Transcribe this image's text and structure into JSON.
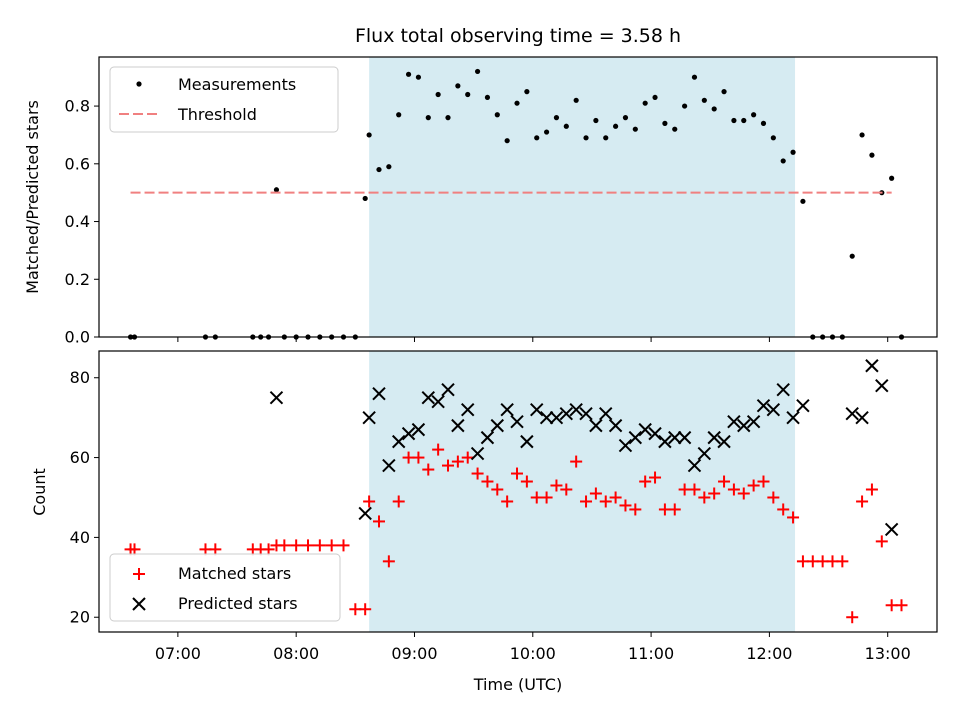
{
  "chart_data": [
    {
      "type": "scatter",
      "title": "Flux total observing time = 3.58 h",
      "ylabel": "Matched/Predicted stars",
      "xlabel": "",
      "xlim": [
        "06:20",
        "13:25"
      ],
      "ylim": [
        0,
        0.97
      ],
      "yticks": [
        0.0,
        0.2,
        0.4,
        0.6,
        0.8
      ],
      "ytick_labels": [
        "0.0",
        "0.2",
        "0.4",
        "0.6",
        "0.8"
      ],
      "shaded_interval": [
        "08:37",
        "12:13"
      ],
      "shaded_color": "#add8e6",
      "legend_position": "upper-left",
      "series": [
        {
          "name": "Measurements",
          "kind": "dots",
          "color": "#000000",
          "points": [
            [
              "06:36",
              0
            ],
            [
              "06:38",
              0
            ],
            [
              "07:14",
              0
            ],
            [
              "07:19",
              0
            ],
            [
              "07:38",
              0
            ],
            [
              "07:42",
              0
            ],
            [
              "07:46",
              0
            ],
            [
              "07:50",
              0.51
            ],
            [
              "07:54",
              0
            ],
            [
              "08:00",
              0
            ],
            [
              "08:06",
              0
            ],
            [
              "08:12",
              0
            ],
            [
              "08:18",
              0
            ],
            [
              "08:24",
              0
            ],
            [
              "08:30",
              0
            ],
            [
              "08:35",
              0.48
            ],
            [
              "08:37",
              0.7
            ],
            [
              "08:42",
              0.58
            ],
            [
              "08:47",
              0.59
            ],
            [
              "08:52",
              0.77
            ],
            [
              "08:57",
              0.91
            ],
            [
              "09:02",
              0.9
            ],
            [
              "09:07",
              0.76
            ],
            [
              "09:12",
              0.84
            ],
            [
              "09:17",
              0.76
            ],
            [
              "09:22",
              0.87
            ],
            [
              "09:27",
              0.84
            ],
            [
              "09:32",
              0.92
            ],
            [
              "09:37",
              0.83
            ],
            [
              "09:42",
              0.77
            ],
            [
              "09:47",
              0.68
            ],
            [
              "09:52",
              0.81
            ],
            [
              "09:57",
              0.85
            ],
            [
              "10:02",
              0.69
            ],
            [
              "10:07",
              0.71
            ],
            [
              "10:12",
              0.76
            ],
            [
              "10:17",
              0.73
            ],
            [
              "10:22",
              0.82
            ],
            [
              "10:27",
              0.69
            ],
            [
              "10:32",
              0.75
            ],
            [
              "10:37",
              0.69
            ],
            [
              "10:42",
              0.73
            ],
            [
              "10:47",
              0.76
            ],
            [
              "10:52",
              0.72
            ],
            [
              "10:57",
              0.81
            ],
            [
              "11:02",
              0.83
            ],
            [
              "11:07",
              0.74
            ],
            [
              "11:12",
              0.72
            ],
            [
              "11:17",
              0.8
            ],
            [
              "11:22",
              0.9
            ],
            [
              "11:27",
              0.82
            ],
            [
              "11:32",
              0.79
            ],
            [
              "11:37",
              0.85
            ],
            [
              "11:42",
              0.75
            ],
            [
              "11:47",
              0.75
            ],
            [
              "11:52",
              0.77
            ],
            [
              "11:57",
              0.74
            ],
            [
              "12:02",
              0.69
            ],
            [
              "12:07",
              0.61
            ],
            [
              "12:12",
              0.64
            ],
            [
              "12:17",
              0.47
            ],
            [
              "12:22",
              0
            ],
            [
              "12:27",
              0
            ],
            [
              "12:32",
              0
            ],
            [
              "12:37",
              0
            ],
            [
              "12:42",
              0.28
            ],
            [
              "12:47",
              0.7
            ],
            [
              "12:52",
              0.63
            ],
            [
              "12:57",
              0.5
            ],
            [
              "13:02",
              0.55
            ],
            [
              "13:07",
              0
            ]
          ]
        },
        {
          "name": "Threshold",
          "kind": "dashed-line",
          "color": "#f08080",
          "points": [
            [
              "06:36",
              0.5
            ],
            [
              "13:02",
              0.5
            ]
          ]
        }
      ]
    },
    {
      "type": "scatter",
      "title": "",
      "ylabel": "Count",
      "xlabel": "Time (UTC)",
      "xlim": [
        "06:20",
        "13:25"
      ],
      "ylim": [
        16.3,
        86.7
      ],
      "yticks": [
        20,
        40,
        60,
        80
      ],
      "ytick_labels": [
        "20",
        "40",
        "60",
        "80"
      ],
      "xticks": [
        "07:00",
        "08:00",
        "09:00",
        "10:00",
        "11:00",
        "12:00",
        "13:00"
      ],
      "xtick_labels": [
        "07:00",
        "08:00",
        "09:00",
        "10:00",
        "11:00",
        "12:00",
        "13:00"
      ],
      "shaded_interval": [
        "08:37",
        "12:13"
      ],
      "shaded_color": "#add8e6",
      "legend_position": "lower-left",
      "series": [
        {
          "name": "Matched stars",
          "kind": "plus",
          "color": "#ff0000",
          "points": [
            [
              "06:36",
              37
            ],
            [
              "06:38",
              37
            ],
            [
              "07:14",
              37
            ],
            [
              "07:19",
              37
            ],
            [
              "07:38",
              37
            ],
            [
              "07:42",
              37
            ],
            [
              "07:46",
              37
            ],
            [
              "07:50",
              38
            ],
            [
              "07:54",
              38
            ],
            [
              "08:00",
              38
            ],
            [
              "08:06",
              38
            ],
            [
              "08:12",
              38
            ],
            [
              "08:18",
              38
            ],
            [
              "08:24",
              38
            ],
            [
              "08:30",
              22
            ],
            [
              "08:35",
              22
            ],
            [
              "08:37",
              49
            ],
            [
              "08:42",
              44
            ],
            [
              "08:47",
              34
            ],
            [
              "08:52",
              49
            ],
            [
              "08:57",
              60
            ],
            [
              "09:02",
              60
            ],
            [
              "09:07",
              57
            ],
            [
              "09:12",
              62
            ],
            [
              "09:17",
              58
            ],
            [
              "09:22",
              59
            ],
            [
              "09:27",
              60
            ],
            [
              "09:32",
              56
            ],
            [
              "09:37",
              54
            ],
            [
              "09:42",
              52
            ],
            [
              "09:47",
              49
            ],
            [
              "09:52",
              56
            ],
            [
              "09:57",
              54
            ],
            [
              "10:02",
              50
            ],
            [
              "10:07",
              50
            ],
            [
              "10:12",
              53
            ],
            [
              "10:17",
              52
            ],
            [
              "10:22",
              59
            ],
            [
              "10:27",
              49
            ],
            [
              "10:32",
              51
            ],
            [
              "10:37",
              49
            ],
            [
              "10:42",
              50
            ],
            [
              "10:47",
              48
            ],
            [
              "10:52",
              47
            ],
            [
              "10:57",
              54
            ],
            [
              "11:02",
              55
            ],
            [
              "11:07",
              47
            ],
            [
              "11:12",
              47
            ],
            [
              "11:17",
              52
            ],
            [
              "11:22",
              52
            ],
            [
              "11:27",
              50
            ],
            [
              "11:32",
              51
            ],
            [
              "11:37",
              54
            ],
            [
              "11:42",
              52
            ],
            [
              "11:47",
              51
            ],
            [
              "11:52",
              53
            ],
            [
              "11:57",
              54
            ],
            [
              "12:02",
              50
            ],
            [
              "12:07",
              47
            ],
            [
              "12:12",
              45
            ],
            [
              "12:17",
              34
            ],
            [
              "12:22",
              34
            ],
            [
              "12:27",
              34
            ],
            [
              "12:32",
              34
            ],
            [
              "12:37",
              34
            ],
            [
              "12:42",
              20
            ],
            [
              "12:47",
              49
            ],
            [
              "12:52",
              52
            ],
            [
              "12:57",
              39
            ],
            [
              "13:02",
              23
            ],
            [
              "13:07",
              23
            ]
          ]
        },
        {
          "name": "Predicted stars",
          "kind": "x",
          "color": "#000000",
          "points": [
            [
              "07:50",
              75
            ],
            [
              "08:35",
              46
            ],
            [
              "08:37",
              70
            ],
            [
              "08:42",
              76
            ],
            [
              "08:47",
              58
            ],
            [
              "08:52",
              64
            ],
            [
              "08:57",
              66
            ],
            [
              "09:02",
              67
            ],
            [
              "09:07",
              75
            ],
            [
              "09:12",
              74
            ],
            [
              "09:17",
              77
            ],
            [
              "09:22",
              68
            ],
            [
              "09:27",
              72
            ],
            [
              "09:32",
              61
            ],
            [
              "09:37",
              65
            ],
            [
              "09:42",
              68
            ],
            [
              "09:47",
              72
            ],
            [
              "09:52",
              69
            ],
            [
              "09:57",
              64
            ],
            [
              "10:02",
              72
            ],
            [
              "10:07",
              70
            ],
            [
              "10:12",
              70
            ],
            [
              "10:17",
              71
            ],
            [
              "10:22",
              72
            ],
            [
              "10:27",
              71
            ],
            [
              "10:32",
              68
            ],
            [
              "10:37",
              71
            ],
            [
              "10:42",
              68
            ],
            [
              "10:47",
              63
            ],
            [
              "10:52",
              65
            ],
            [
              "10:57",
              67
            ],
            [
              "11:02",
              66
            ],
            [
              "11:07",
              64
            ],
            [
              "11:12",
              65
            ],
            [
              "11:17",
              65
            ],
            [
              "11:22",
              58
            ],
            [
              "11:27",
              61
            ],
            [
              "11:32",
              65
            ],
            [
              "11:37",
              64
            ],
            [
              "11:42",
              69
            ],
            [
              "11:47",
              68
            ],
            [
              "11:52",
              69
            ],
            [
              "11:57",
              73
            ],
            [
              "12:02",
              72
            ],
            [
              "12:07",
              77
            ],
            [
              "12:12",
              70
            ],
            [
              "12:17",
              73
            ],
            [
              "12:42",
              71
            ],
            [
              "12:47",
              70
            ],
            [
              "12:52",
              83
            ],
            [
              "12:57",
              78
            ],
            [
              "13:02",
              42
            ]
          ]
        }
      ]
    }
  ]
}
